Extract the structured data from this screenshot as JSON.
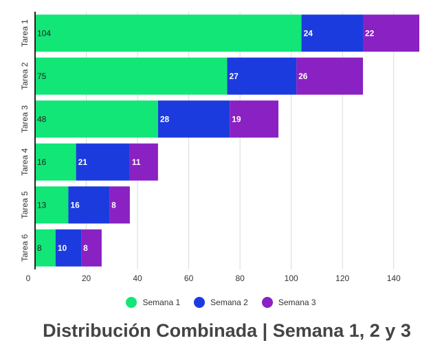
{
  "chart_data": {
    "type": "bar",
    "orientation": "horizontal",
    "stacked": true,
    "title": "Distribución Combinada | Semana 1, 2 y 3",
    "xlabel": "",
    "ylabel": "",
    "categories": [
      "Tarea 1",
      "Tarea 2",
      "Tarea 3",
      "Tarea 4",
      "Tarea 5",
      "Tarea 6"
    ],
    "series": [
      {
        "name": "Semana 1",
        "color": "#12e676",
        "values": [
          104,
          75,
          48,
          16,
          13,
          8
        ]
      },
      {
        "name": "Semana 2",
        "color": "#1c3bdf",
        "values": [
          24,
          27,
          28,
          21,
          16,
          10
        ]
      },
      {
        "name": "Semana 3",
        "color": "#8a21c2",
        "values": [
          22,
          26,
          19,
          11,
          8,
          8
        ]
      }
    ],
    "xlim": [
      0,
      150
    ],
    "xticks": [
      0,
      20,
      40,
      60,
      80,
      100,
      120,
      140
    ],
    "grid": true,
    "legend_position": "bottom"
  }
}
